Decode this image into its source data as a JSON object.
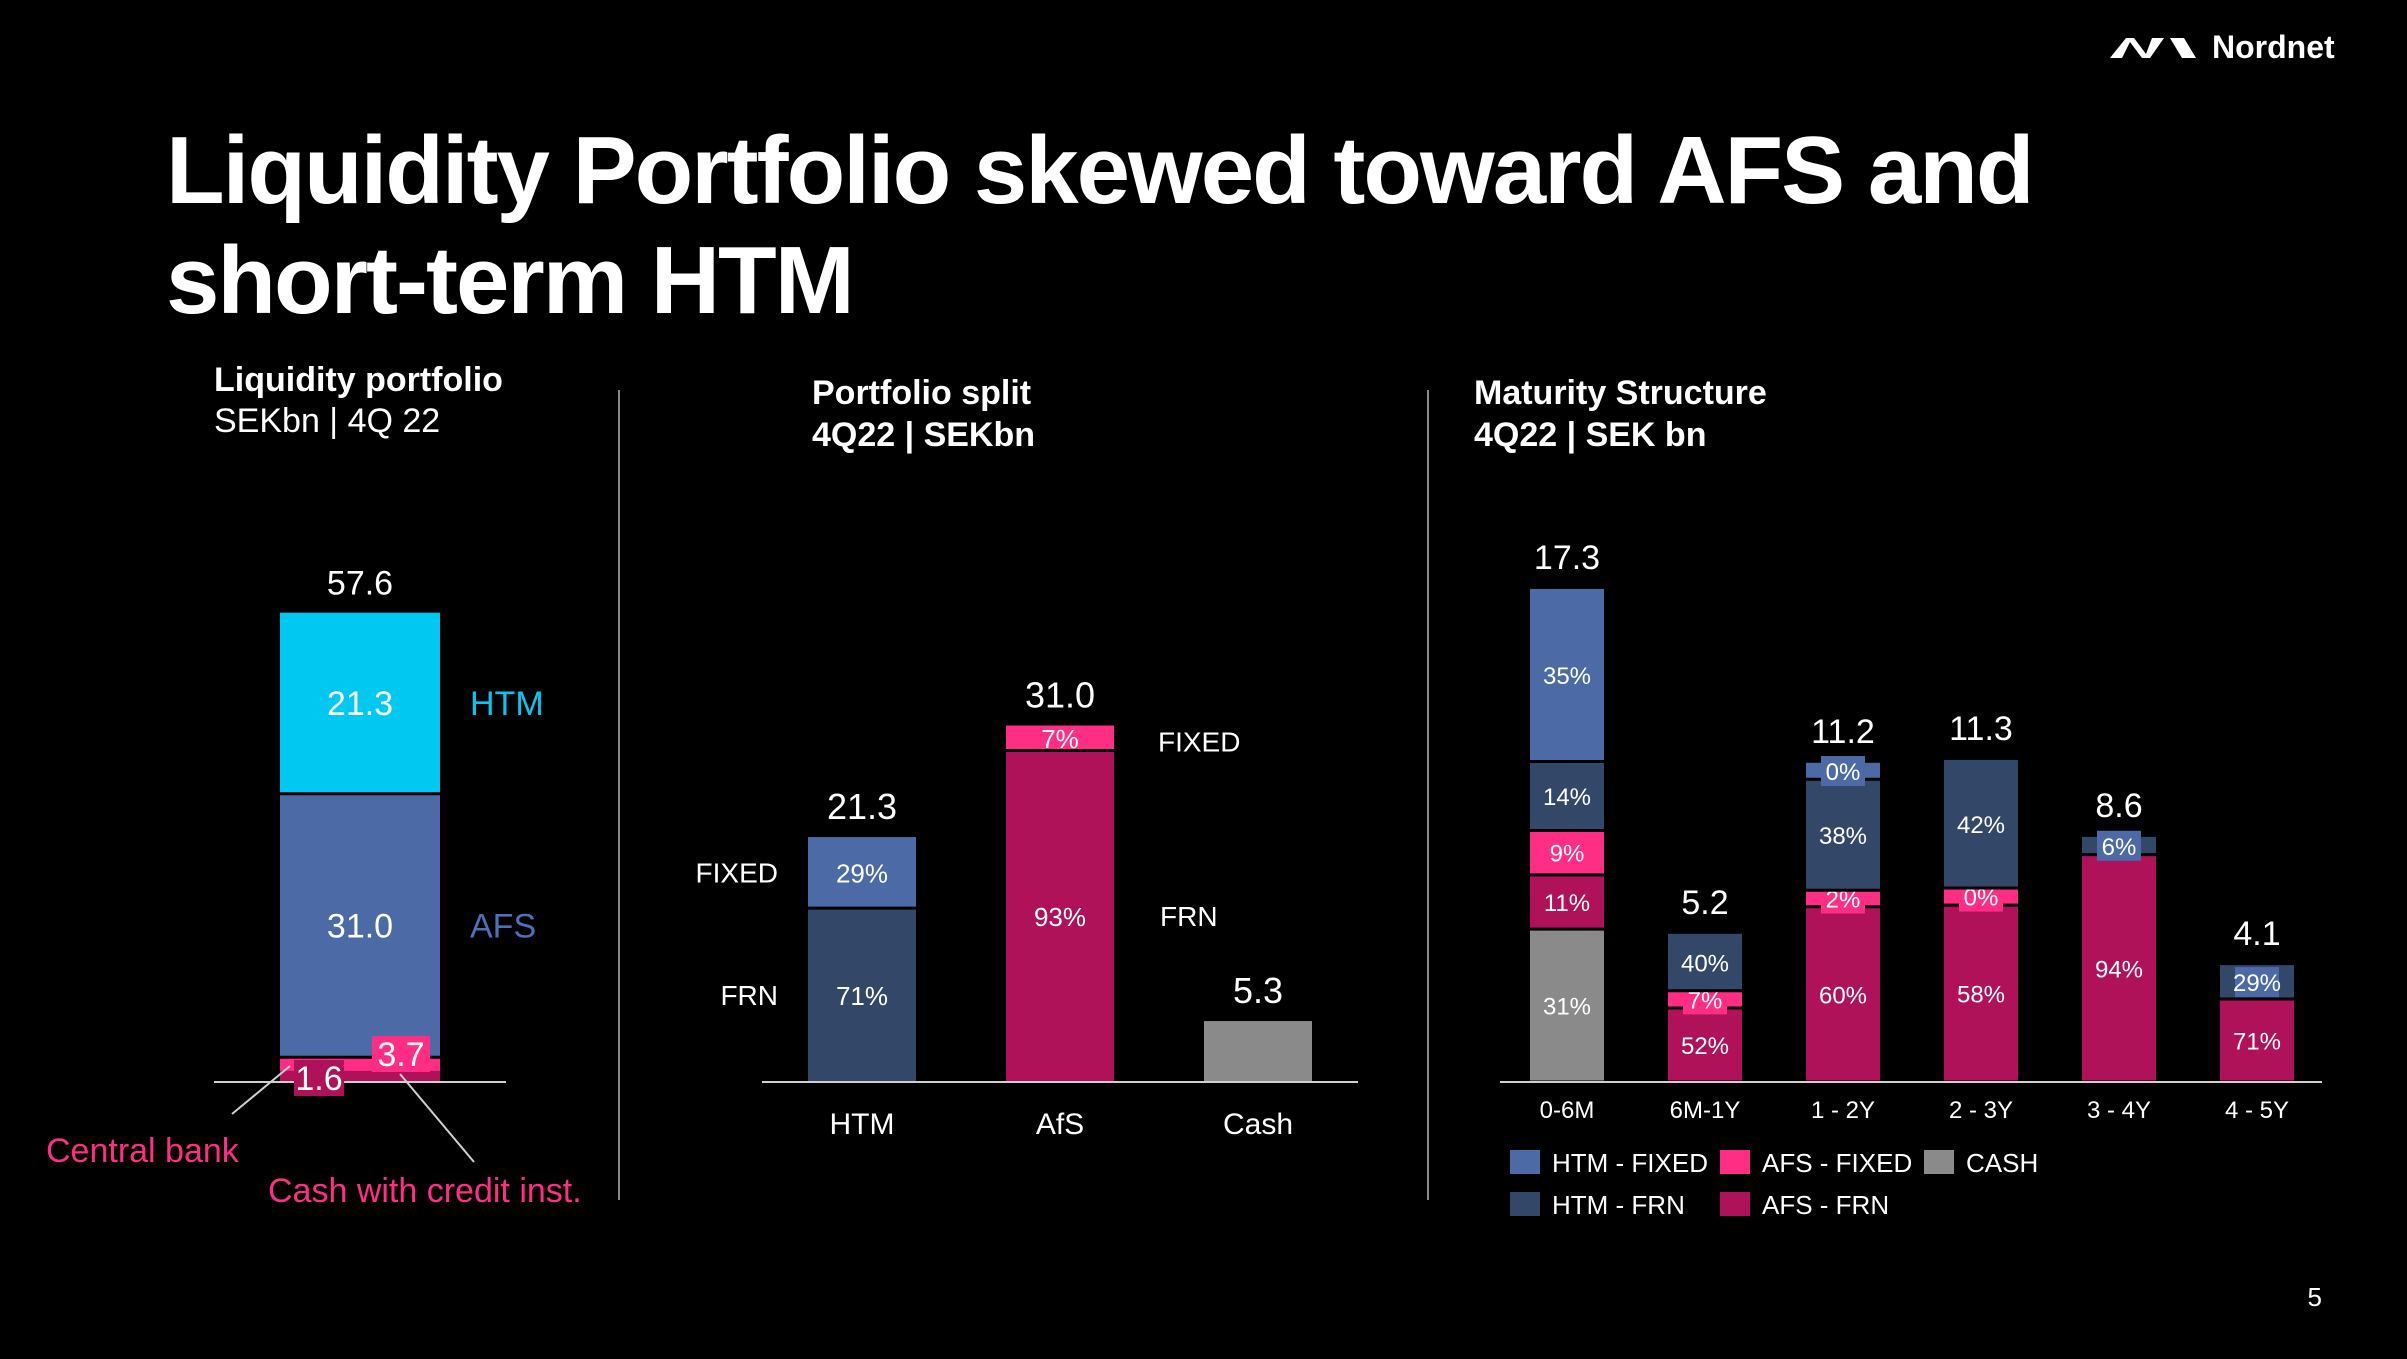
{
  "slide": {
    "title_line1": "Liquidity Portfolio skewed toward AFS and",
    "title_line2": "short-term HTM",
    "brand": "Nordnet",
    "page_number": "5",
    "colors": {
      "background": "#000000",
      "text": "#ffffff",
      "htm_cyan": "#00c8f0",
      "htm_fixed": "#4b6aa6",
      "htm_frn": "#334768",
      "afs_fixed": "#ff2d84",
      "afs_frn": "#b0125a",
      "cash": "#8a8a8a",
      "afs_label": "#4f6fb8",
      "red_label": "#ff2d84"
    }
  },
  "chart_data": [
    {
      "type": "bar",
      "subtype": "stacked",
      "title": "Liquidity portfolio",
      "subtitle": "SEKbn | 4Q 22",
      "total": "57.6",
      "segments": [
        {
          "name": "HTM",
          "value": 21.3,
          "label": "21.3"
        },
        {
          "name": "AFS",
          "value": 31.0,
          "label": "31.0"
        },
        {
          "name": "Cash with credit inst.",
          "value": 3.7,
          "label": "3.7"
        },
        {
          "name": "Central bank",
          "value": 1.6,
          "label": "1.6"
        }
      ]
    },
    {
      "type": "bar",
      "subtype": "stacked-percent",
      "title": "Portfolio split",
      "subtitle": "4Q22 | SEKbn",
      "categories": [
        "HTM",
        "AfS",
        "Cash"
      ],
      "totals": [
        21.3,
        31.0,
        5.3
      ],
      "total_labels": [
        "21.3",
        "31.0",
        "5.3"
      ],
      "side_labels": {
        "htm_fixed": "FIXED",
        "htm_frn": "FRN",
        "afs_fixed": "FIXED",
        "afs_frn": "FRN"
      },
      "stacks": [
        [
          {
            "name": "FRN",
            "pct": 71,
            "label": "71%"
          },
          {
            "name": "FIXED",
            "pct": 29,
            "label": "29%"
          }
        ],
        [
          {
            "name": "FRN",
            "pct": 93,
            "label": "93%"
          },
          {
            "name": "FIXED",
            "pct": 7,
            "label": "7%"
          }
        ],
        [
          {
            "name": "Cash",
            "pct": 100,
            "label": ""
          }
        ]
      ]
    },
    {
      "type": "bar",
      "subtype": "stacked",
      "title": "Maturity Structure",
      "subtitle": "4Q22 | SEK bn",
      "categories": [
        "0-6M",
        "6M-1Y",
        "1 - 2Y",
        "2 - 3Y",
        "3 - 4Y",
        "4 - 5Y"
      ],
      "totals": [
        17.3,
        5.2,
        11.2,
        11.3,
        8.6,
        4.1
      ],
      "total_labels": [
        "17.3",
        "5.2",
        "11.2",
        "11.3",
        "8.6",
        "4.1"
      ],
      "series": [
        {
          "name": "CASH",
          "values": [
            31,
            0,
            0,
            0,
            0,
            0
          ],
          "labels": [
            "31%",
            "",
            "",
            "",
            "",
            ""
          ]
        },
        {
          "name": "AFS - FRN",
          "values": [
            11,
            52,
            60,
            58,
            94,
            71
          ],
          "labels": [
            "11%",
            "52%",
            "60%",
            "58%",
            "94%",
            "71%"
          ]
        },
        {
          "name": "AFS - FIXED",
          "values": [
            9,
            7,
            2,
            0,
            0,
            0
          ],
          "labels": [
            "9%",
            "7%",
            "2%",
            "0%",
            "",
            ""
          ]
        },
        {
          "name": "HTM - FRN",
          "values": [
            14,
            40,
            38,
            42,
            6,
            29
          ],
          "labels": [
            "14%",
            "40%",
            "38%",
            "42%",
            "6%",
            "29%"
          ]
        },
        {
          "name": "HTM - FIXED",
          "values": [
            35,
            0,
            0,
            0,
            0,
            0
          ],
          "labels": [
            "35%",
            "",
            "0%",
            "",
            "",
            ""
          ]
        }
      ],
      "legend": [
        "HTM - FIXED",
        "AFS - FIXED",
        "CASH",
        "HTM - FRN",
        "AFS - FRN"
      ],
      "legend_placement": "bottom"
    }
  ]
}
